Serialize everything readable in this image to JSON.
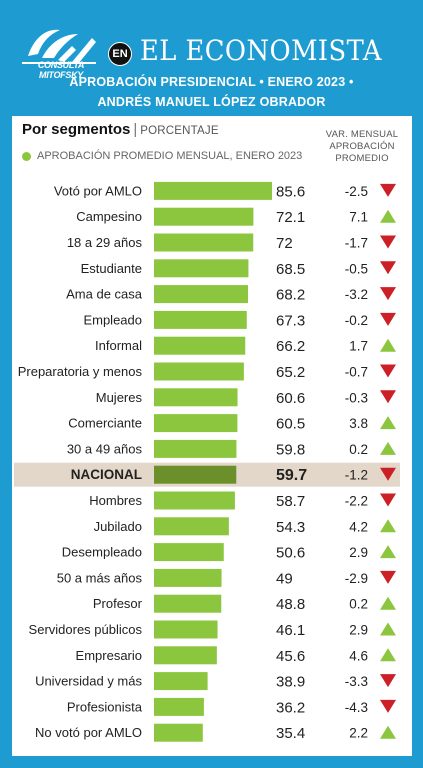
{
  "header": {
    "logo_text": "CONSULTA MITOFSKY",
    "badge": "EN",
    "brand": "EL ECONOMISTA",
    "subtitle_line1": "APROBACIÓN PRESIDENCIAL • ENERO 2023 •",
    "subtitle_line2": "ANDRÉS MANUEL LÓPEZ OBRADOR"
  },
  "panel": {
    "title": "Por segmentos",
    "title_unit": "PORCENTAJE",
    "var_header": [
      "VAR. MENSUAL",
      "APROBACIÓN",
      "PROMEDIO"
    ]
  },
  "colors": {
    "bar": "#8cc63f",
    "bar_highlight": "#6b8f2a",
    "highlight_bg": "#e3d7c9",
    "up": "#8cc63f",
    "down": "#cc1f26",
    "background": "#1e9cd2"
  },
  "chart_data": {
    "type": "bar",
    "orientation": "horizontal",
    "legend": "APROBACIÓN PROMEDIO MENSUAL, ENERO 2023",
    "highlight": "NACIONAL",
    "categories": [
      "Votó por AMLO",
      "Campesino",
      "18 a 29 años",
      "Estudiante",
      "Ama de casa",
      "Empleado",
      "Informal",
      "Preparatoria y menos",
      "Mujeres",
      "Comerciante",
      "30 a 49 años",
      "NACIONAL",
      "Hombres",
      "Jubilado",
      "Desempleado",
      "50 a más años",
      "Profesor",
      "Servidores públicos",
      "Empresario",
      "Universidad y más",
      "Profesionista",
      "No votó por AMLO"
    ],
    "values": [
      85.6,
      72.1,
      72,
      68.5,
      68.2,
      67.3,
      66.2,
      65.2,
      60.6,
      60.5,
      59.8,
      59.7,
      58.7,
      54.3,
      50.6,
      49,
      48.8,
      46.1,
      45.6,
      38.9,
      36.2,
      35.4
    ],
    "value_labels": [
      "85.6",
      "72.1",
      "72",
      "68.5",
      "68.2",
      "67.3",
      "66.2",
      "65.2",
      "60.6",
      "60.5",
      "59.8",
      "59.7",
      "58.7",
      "54.3",
      "50.6",
      "49",
      "48.8",
      "46.1",
      "45.6",
      "38.9",
      "36.2",
      "35.4"
    ],
    "var_mensual": [
      "-2.5",
      "7.1",
      "-1.7",
      "-0.5",
      "-3.2",
      "-0.2",
      "1.7",
      "-0.7",
      "-0.3",
      "3.8",
      "0.2",
      "-1.2",
      "-2.2",
      "4.2",
      "2.9",
      "-2.9",
      "0.2",
      "2.9",
      "4.6",
      "-3.3",
      "-4.3",
      "2.2"
    ],
    "var_direction": [
      "down",
      "up",
      "down",
      "down",
      "down",
      "down",
      "up",
      "down",
      "down",
      "up",
      "up",
      "down",
      "down",
      "up",
      "up",
      "down",
      "up",
      "up",
      "up",
      "down",
      "down",
      "up"
    ]
  }
}
